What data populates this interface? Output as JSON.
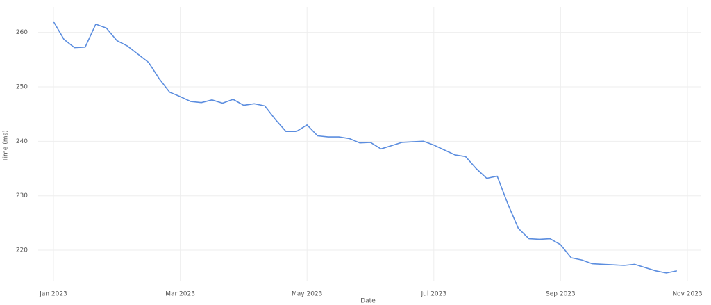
{
  "chart_data": {
    "type": "line",
    "x_label": "Date",
    "y_label": "Time (ms)",
    "categories": [
      "Jan 2023",
      null,
      null,
      null,
      null,
      null,
      null,
      null,
      null,
      null,
      null,
      null,
      "Mar 2023",
      null,
      null,
      null,
      null,
      null,
      null,
      null,
      null,
      null,
      null,
      null,
      "May 2023",
      null,
      null,
      null,
      null,
      null,
      null,
      null,
      null,
      null,
      null,
      null,
      "Jul 2023",
      null,
      null,
      null,
      null,
      null,
      null,
      null,
      null,
      null,
      null,
      null,
      "Sep 2023",
      null,
      null,
      null,
      null,
      null,
      null,
      null,
      null,
      null,
      null,
      null,
      "Nov 2023"
    ],
    "series": [
      {
        "name": "Time (ms)",
        "color": "#5b8ddf",
        "values": [
          262,
          258.7,
          257.2,
          257.3,
          261.5,
          260.8,
          258.5,
          257.5,
          256,
          254.5,
          251.5,
          249,
          248.2,
          247.3,
          247.1,
          247.6,
          247,
          247.7,
          246.6,
          246.9,
          246.5,
          244,
          241.8,
          241.8,
          243,
          241,
          240.8,
          240.8,
          240.5,
          239.7,
          239.8,
          238.6,
          239.2,
          239.8,
          239.9,
          240,
          239.3,
          238.4,
          237.5,
          237.2,
          235,
          233.2,
          233.6,
          228.5,
          224,
          222.1,
          222,
          222.1,
          221,
          218.6,
          218.2,
          217.5,
          217.4,
          217.3,
          217.2,
          217.4,
          216.8,
          216.2,
          215.8,
          216.2,
          null
        ]
      }
    ],
    "ylim": [
      214.9,
      263.4
    ],
    "yticks": [
      220,
      230,
      240,
      250,
      260
    ],
    "grid": true
  }
}
